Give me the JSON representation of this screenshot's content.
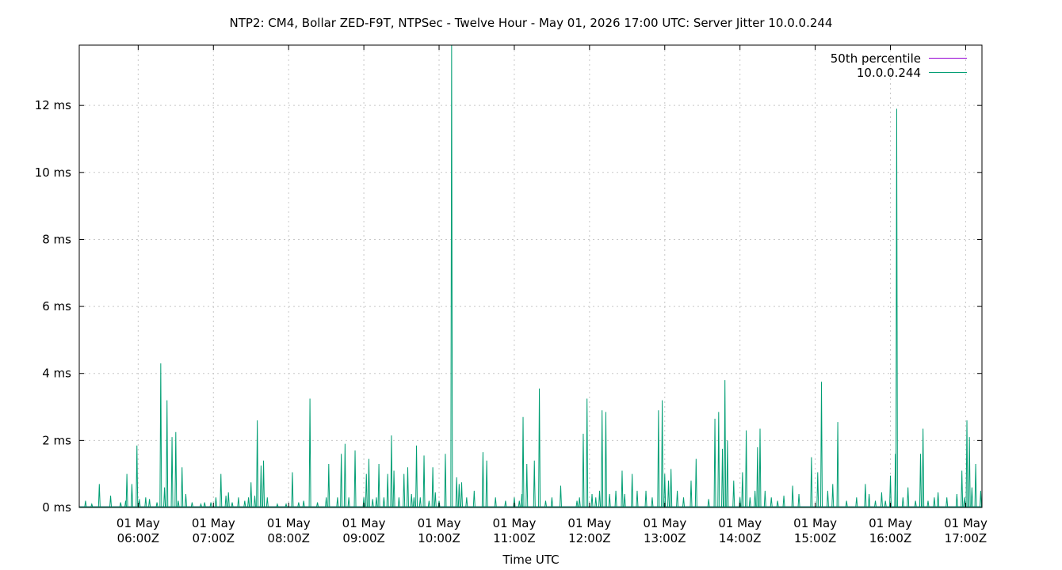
{
  "chart_data": {
    "type": "line",
    "title": "NTP2: CM4, Bollar ZED-F9T, NTPSec - Twelve Hour - May 01, 2026 17:00 UTC: Server Jitter 10.0.0.244",
    "xlabel": "Time UTC",
    "ylabel": "",
    "x_range": [
      "2026-05-01T05:13:00Z",
      "2026-05-01T17:13:00Z"
    ],
    "ylim": [
      0,
      13.8
    ],
    "y_unit": "ms",
    "grid": true,
    "legend_position": "top-right",
    "x_ticks": [
      {
        "t": "2026-05-01T06:00:00Z",
        "line1": "01 May",
        "line2": "06:00Z"
      },
      {
        "t": "2026-05-01T07:00:00Z",
        "line1": "01 May",
        "line2": "07:00Z"
      },
      {
        "t": "2026-05-01T08:00:00Z",
        "line1": "01 May",
        "line2": "08:00Z"
      },
      {
        "t": "2026-05-01T09:00:00Z",
        "line1": "01 May",
        "line2": "09:00Z"
      },
      {
        "t": "2026-05-01T10:00:00Z",
        "line1": "01 May",
        "line2": "10:00Z"
      },
      {
        "t": "2026-05-01T11:00:00Z",
        "line1": "01 May",
        "line2": "11:00Z"
      },
      {
        "t": "2026-05-01T12:00:00Z",
        "line1": "01 May",
        "line2": "12:00Z"
      },
      {
        "t": "2026-05-01T13:00:00Z",
        "line1": "01 May",
        "line2": "13:00Z"
      },
      {
        "t": "2026-05-01T14:00:00Z",
        "line1": "01 May",
        "line2": "14:00Z"
      },
      {
        "t": "2026-05-01T15:00:00Z",
        "line1": "01 May",
        "line2": "15:00Z"
      },
      {
        "t": "2026-05-01T16:00:00Z",
        "line1": "01 May",
        "line2": "16:00Z"
      },
      {
        "t": "2026-05-01T17:00:00Z",
        "line1": "01 May",
        "line2": "17:00Z"
      }
    ],
    "y_ticks": [
      {
        "v": 0,
        "label": "0 ms"
      },
      {
        "v": 2,
        "label": "2 ms"
      },
      {
        "v": 4,
        "label": "4 ms"
      },
      {
        "v": 6,
        "label": "6 ms"
      },
      {
        "v": 8,
        "label": "8 ms"
      },
      {
        "v": 10,
        "label": "10 ms"
      },
      {
        "v": 12,
        "label": "12 ms"
      }
    ],
    "series": [
      {
        "name": "50th percentile",
        "color": "#9400d3",
        "values": [
          [
            "2026-05-01T05:13:00Z",
            0.02
          ],
          [
            "2026-05-01T17:13:00Z",
            0.02
          ]
        ]
      },
      {
        "name": "10.0.0.244",
        "color": "#009e73",
        "baseline": 0.02,
        "spikes": [
          [
            "2026-05-01T05:18:00Z",
            0.2
          ],
          [
            "2026-05-01T05:23:00Z",
            0.1
          ],
          [
            "2026-05-01T05:29:00Z",
            0.7
          ],
          [
            "2026-05-01T05:38:00Z",
            0.35
          ],
          [
            "2026-05-01T05:46:00Z",
            0.15
          ],
          [
            "2026-05-01T05:50:00Z",
            0.2
          ],
          [
            "2026-05-01T05:51:00Z",
            1.0
          ],
          [
            "2026-05-01T05:55:00Z",
            0.7
          ],
          [
            "2026-05-01T05:59:00Z",
            1.85
          ],
          [
            "2026-05-01T06:01:00Z",
            0.25
          ],
          [
            "2026-05-01T06:06:00Z",
            0.3
          ],
          [
            "2026-05-01T06:09:00Z",
            0.25
          ],
          [
            "2026-05-01T06:15:00Z",
            0.15
          ],
          [
            "2026-05-01T06:18:00Z",
            4.3
          ],
          [
            "2026-05-01T06:21:00Z",
            0.6
          ],
          [
            "2026-05-01T06:23:00Z",
            3.2
          ],
          [
            "2026-05-01T06:27:00Z",
            2.1
          ],
          [
            "2026-05-01T06:30:00Z",
            2.25
          ],
          [
            "2026-05-01T06:32:00Z",
            0.2
          ],
          [
            "2026-05-01T06:35:00Z",
            1.2
          ],
          [
            "2026-05-01T06:38:00Z",
            0.4
          ],
          [
            "2026-05-01T06:43:00Z",
            0.15
          ],
          [
            "2026-05-01T06:50:00Z",
            0.1
          ],
          [
            "2026-05-01T06:53:00Z",
            0.15
          ],
          [
            "2026-05-01T06:58:00Z",
            0.15
          ],
          [
            "2026-05-01T07:02:00Z",
            0.3
          ],
          [
            "2026-05-01T07:06:00Z",
            1.0
          ],
          [
            "2026-05-01T07:10:00Z",
            0.35
          ],
          [
            "2026-05-01T07:12:00Z",
            0.45
          ],
          [
            "2026-05-01T07:15:00Z",
            0.15
          ],
          [
            "2026-05-01T07:20:00Z",
            0.3
          ],
          [
            "2026-05-01T07:25:00Z",
            0.2
          ],
          [
            "2026-05-01T07:28:00Z",
            0.3
          ],
          [
            "2026-05-01T07:30:00Z",
            0.75
          ],
          [
            "2026-05-01T07:33:00Z",
            0.35
          ],
          [
            "2026-05-01T07:35:00Z",
            2.6
          ],
          [
            "2026-05-01T07:38:00Z",
            1.25
          ],
          [
            "2026-05-01T07:40:00Z",
            1.4
          ],
          [
            "2026-05-01T07:43:00Z",
            0.3
          ],
          [
            "2026-05-01T07:51:00Z",
            0.1
          ],
          [
            "2026-05-01T07:58:00Z",
            0.1
          ],
          [
            "2026-05-01T08:03:00Z",
            1.05
          ],
          [
            "2026-05-01T08:08:00Z",
            0.15
          ],
          [
            "2026-05-01T08:12:00Z",
            0.2
          ],
          [
            "2026-05-01T08:17:00Z",
            3.25
          ],
          [
            "2026-05-01T08:23:00Z",
            0.15
          ],
          [
            "2026-05-01T08:30:00Z",
            0.3
          ],
          [
            "2026-05-01T08:32:00Z",
            1.3
          ],
          [
            "2026-05-01T08:39:00Z",
            0.3
          ],
          [
            "2026-05-01T08:42:00Z",
            1.6
          ],
          [
            "2026-05-01T08:45:00Z",
            1.9
          ],
          [
            "2026-05-01T08:48:00Z",
            0.3
          ],
          [
            "2026-05-01T08:53:00Z",
            1.7
          ],
          [
            "2026-05-01T09:00:00Z",
            0.3
          ],
          [
            "2026-05-01T09:02:00Z",
            1.0
          ],
          [
            "2026-05-01T09:04:00Z",
            1.45
          ],
          [
            "2026-05-01T09:07:00Z",
            0.25
          ],
          [
            "2026-05-01T09:10:00Z",
            0.3
          ],
          [
            "2026-05-01T09:12:00Z",
            1.3
          ],
          [
            "2026-05-01T09:16:00Z",
            0.3
          ],
          [
            "2026-05-01T09:19:00Z",
            1.0
          ],
          [
            "2026-05-01T09:22:00Z",
            2.15
          ],
          [
            "2026-05-01T09:24:00Z",
            1.1
          ],
          [
            "2026-05-01T09:28:00Z",
            0.3
          ],
          [
            "2026-05-01T09:32:00Z",
            1.0
          ],
          [
            "2026-05-01T09:35:00Z",
            1.2
          ],
          [
            "2026-05-01T09:38:00Z",
            0.4
          ],
          [
            "2026-05-01T09:40:00Z",
            0.3
          ],
          [
            "2026-05-01T09:42:00Z",
            1.85
          ],
          [
            "2026-05-01T09:45:00Z",
            0.3
          ],
          [
            "2026-05-01T09:48:00Z",
            1.55
          ],
          [
            "2026-05-01T09:52:00Z",
            0.2
          ],
          [
            "2026-05-01T09:55:00Z",
            1.2
          ],
          [
            "2026-05-01T09:57:00Z",
            0.45
          ],
          [
            "2026-05-01T10:00:00Z",
            0.2
          ],
          [
            "2026-05-01T10:05:00Z",
            1.6
          ],
          [
            "2026-05-01T10:10:00Z",
            13.8
          ],
          [
            "2026-05-01T10:14:00Z",
            0.9
          ],
          [
            "2026-05-01T10:16:00Z",
            0.7
          ],
          [
            "2026-05-01T10:18:00Z",
            0.75
          ],
          [
            "2026-05-01T10:22:00Z",
            0.3
          ],
          [
            "2026-05-01T10:28:00Z",
            0.5
          ],
          [
            "2026-05-01T10:35:00Z",
            1.65
          ],
          [
            "2026-05-01T10:38:00Z",
            1.4
          ],
          [
            "2026-05-01T10:45:00Z",
            0.3
          ],
          [
            "2026-05-01T10:53:00Z",
            0.2
          ],
          [
            "2026-05-01T11:00:00Z",
            0.3
          ],
          [
            "2026-05-01T11:04:00Z",
            0.2
          ],
          [
            "2026-05-01T11:06:00Z",
            0.4
          ],
          [
            "2026-05-01T11:07:00Z",
            2.7
          ],
          [
            "2026-05-01T11:10:00Z",
            1.3
          ],
          [
            "2026-05-01T11:16:00Z",
            1.4
          ],
          [
            "2026-05-01T11:20:00Z",
            3.55
          ],
          [
            "2026-05-01T11:25:00Z",
            0.2
          ],
          [
            "2026-05-01T11:30:00Z",
            0.3
          ],
          [
            "2026-05-01T11:37:00Z",
            0.65
          ],
          [
            "2026-05-01T11:50:00Z",
            0.2
          ],
          [
            "2026-05-01T11:52:00Z",
            0.3
          ],
          [
            "2026-05-01T11:55:00Z",
            2.2
          ],
          [
            "2026-05-01T11:58:00Z",
            3.25
          ],
          [
            "2026-05-01T12:02:00Z",
            0.4
          ],
          [
            "2026-05-01T12:05:00Z",
            0.3
          ],
          [
            "2026-05-01T12:08:00Z",
            0.5
          ],
          [
            "2026-05-01T12:10:00Z",
            2.9
          ],
          [
            "2026-05-01T12:13:00Z",
            2.85
          ],
          [
            "2026-05-01T12:16:00Z",
            0.4
          ],
          [
            "2026-05-01T12:21:00Z",
            0.5
          ],
          [
            "2026-05-01T12:26:00Z",
            1.1
          ],
          [
            "2026-05-01T12:28:00Z",
            0.4
          ],
          [
            "2026-05-01T12:34:00Z",
            1.0
          ],
          [
            "2026-05-01T12:38:00Z",
            0.5
          ],
          [
            "2026-05-01T12:45:00Z",
            0.5
          ],
          [
            "2026-05-01T12:50:00Z",
            0.3
          ],
          [
            "2026-05-01T12:55:00Z",
            2.9
          ],
          [
            "2026-05-01T12:58:00Z",
            3.2
          ],
          [
            "2026-05-01T13:00:00Z",
            1.0
          ],
          [
            "2026-05-01T13:03:00Z",
            0.8
          ],
          [
            "2026-05-01T13:05:00Z",
            1.15
          ],
          [
            "2026-05-01T13:10:00Z",
            0.5
          ],
          [
            "2026-05-01T13:15:00Z",
            0.3
          ],
          [
            "2026-05-01T13:21:00Z",
            0.8
          ],
          [
            "2026-05-01T13:25:00Z",
            1.45
          ],
          [
            "2026-05-01T13:35:00Z",
            0.25
          ],
          [
            "2026-05-01T13:40:00Z",
            2.65
          ],
          [
            "2026-05-01T13:43:00Z",
            2.85
          ],
          [
            "2026-05-01T13:46:00Z",
            1.75
          ],
          [
            "2026-05-01T13:48:00Z",
            3.8
          ],
          [
            "2026-05-01T13:50:00Z",
            2.0
          ],
          [
            "2026-05-01T13:55:00Z",
            0.8
          ],
          [
            "2026-05-01T14:00:00Z",
            0.3
          ],
          [
            "2026-05-01T14:02:00Z",
            1.05
          ],
          [
            "2026-05-01T14:05:00Z",
            2.3
          ],
          [
            "2026-05-01T14:08:00Z",
            0.3
          ],
          [
            "2026-05-01T14:12:00Z",
            0.5
          ],
          [
            "2026-05-01T14:14:00Z",
            1.8
          ],
          [
            "2026-05-01T14:16:00Z",
            2.35
          ],
          [
            "2026-05-01T14:20:00Z",
            0.5
          ],
          [
            "2026-05-01T14:25:00Z",
            0.3
          ],
          [
            "2026-05-01T14:30:00Z",
            0.2
          ],
          [
            "2026-05-01T14:35:00Z",
            0.35
          ],
          [
            "2026-05-01T14:42:00Z",
            0.65
          ],
          [
            "2026-05-01T14:47:00Z",
            0.4
          ],
          [
            "2026-05-01T14:57:00Z",
            1.5
          ],
          [
            "2026-05-01T15:02:00Z",
            1.05
          ],
          [
            "2026-05-01T15:05:00Z",
            3.75
          ],
          [
            "2026-05-01T15:10:00Z",
            0.5
          ],
          [
            "2026-05-01T15:14:00Z",
            0.7
          ],
          [
            "2026-05-01T15:18:00Z",
            2.55
          ],
          [
            "2026-05-01T15:25:00Z",
            0.2
          ],
          [
            "2026-05-01T15:33:00Z",
            0.3
          ],
          [
            "2026-05-01T15:40:00Z",
            0.7
          ],
          [
            "2026-05-01T15:43:00Z",
            0.4
          ],
          [
            "2026-05-01T15:48:00Z",
            0.2
          ],
          [
            "2026-05-01T15:53:00Z",
            0.45
          ],
          [
            "2026-05-01T15:56:00Z",
            0.2
          ],
          [
            "2026-05-01T16:00:00Z",
            0.95
          ],
          [
            "2026-05-01T16:04:00Z",
            1.6
          ],
          [
            "2026-05-01T16:05:00Z",
            11.9
          ],
          [
            "2026-05-01T16:10:00Z",
            0.3
          ],
          [
            "2026-05-01T16:14:00Z",
            0.6
          ],
          [
            "2026-05-01T16:20:00Z",
            0.2
          ],
          [
            "2026-05-01T16:24:00Z",
            1.6
          ],
          [
            "2026-05-01T16:26:00Z",
            2.35
          ],
          [
            "2026-05-01T16:30:00Z",
            0.2
          ],
          [
            "2026-05-01T16:35:00Z",
            0.3
          ],
          [
            "2026-05-01T16:38:00Z",
            0.45
          ],
          [
            "2026-05-01T16:45:00Z",
            0.3
          ],
          [
            "2026-05-01T16:53:00Z",
            0.4
          ],
          [
            "2026-05-01T16:57:00Z",
            1.1
          ],
          [
            "2026-05-01T16:59:00Z",
            0.3
          ],
          [
            "2026-05-01T17:01:00Z",
            2.6
          ],
          [
            "2026-05-01T17:03:00Z",
            2.1
          ],
          [
            "2026-05-01T17:05:00Z",
            0.6
          ],
          [
            "2026-05-01T17:08:00Z",
            1.3
          ],
          [
            "2026-05-01T17:12:00Z",
            0.5
          ]
        ]
      }
    ]
  }
}
